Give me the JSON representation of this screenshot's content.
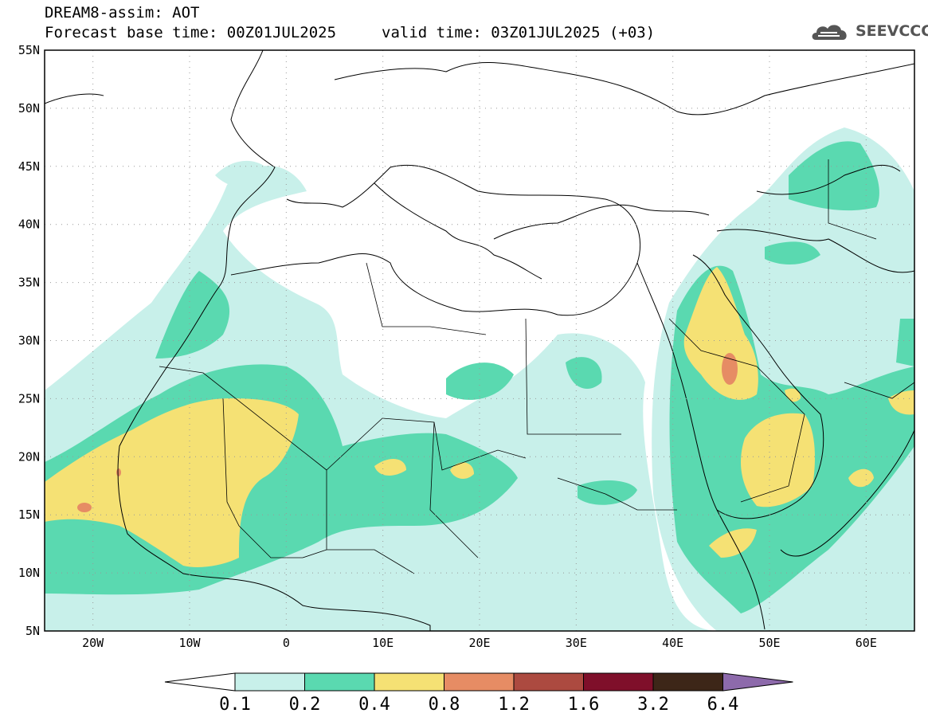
{
  "header": {
    "title": "DREAM8-assim: AOT",
    "forecast_base": "Forecast base time: 00Z01JUL2025",
    "valid_time": "valid time: 03Z01JUL2025 (+03)"
  },
  "logo": {
    "text": "SEEVCCC",
    "icon": "cloud-logo-icon"
  },
  "map": {
    "lon_range": [
      -25,
      65
    ],
    "lat_range": [
      5,
      55
    ],
    "lat_labels": [
      "55N",
      "50N",
      "45N",
      "40N",
      "35N",
      "30N",
      "25N",
      "20N",
      "15N",
      "10N",
      "5N"
    ],
    "lat_values": [
      55,
      50,
      45,
      40,
      35,
      30,
      25,
      20,
      15,
      10,
      5
    ],
    "lon_labels": [
      "20W",
      "10W",
      "0",
      "10E",
      "20E",
      "30E",
      "40E",
      "50E",
      "60E"
    ],
    "lon_values": [
      -20,
      -10,
      0,
      10,
      20,
      30,
      40,
      50,
      60
    ],
    "grid": true
  },
  "colorbar": {
    "labels": [
      "0.1",
      "0.2",
      "0.4",
      "0.8",
      "1.2",
      "1.6",
      "3.2",
      "6.4"
    ],
    "colors": [
      "#ffffff",
      "#c8f0ea",
      "#5ad9b0",
      "#f5e174",
      "#e68c64",
      "#ac4a40",
      "#7f0f2a",
      "#3d2618",
      "#8d6aab"
    ]
  },
  "colors": {
    "c01": "#c8f0ea",
    "c02": "#5ad9b0",
    "c04": "#f5e174",
    "c08": "#e68c64",
    "c12": "#ac4a40"
  }
}
